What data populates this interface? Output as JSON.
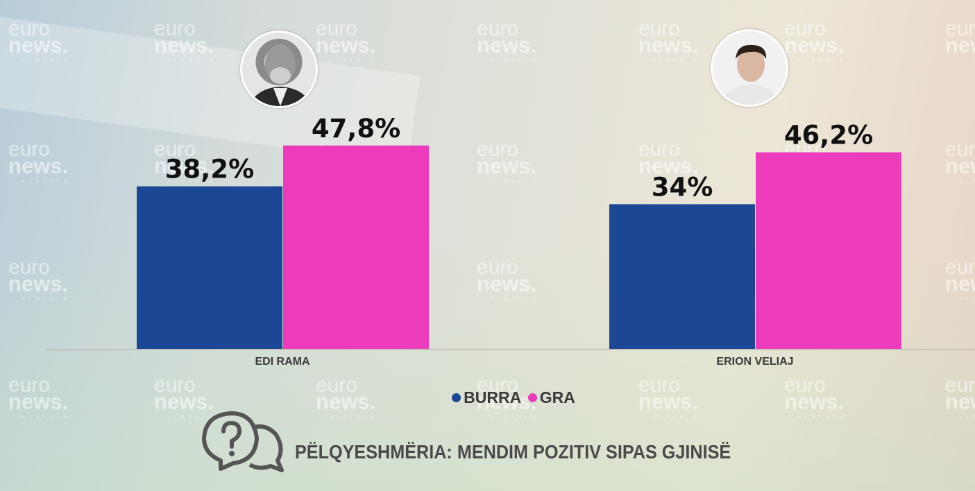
{
  "watermark": {
    "line1": "euro",
    "line2": "news.",
    "line3": "ALBANIA"
  },
  "chart_data": {
    "type": "bar",
    "title": "PËLQYESHMËRIA: MENDIM POZITIV SIPAS GJINISË",
    "categories": [
      "EDI RAMA",
      "ERION VELIAJ"
    ],
    "series": [
      {
        "name": "BURRA",
        "color": "#1c4794",
        "values": [
          38.2,
          34
        ],
        "labels": [
          "38,2%",
          "34%"
        ]
      },
      {
        "name": "GRA",
        "color": "#ec3cbc",
        "values": [
          47.8,
          46.2
        ],
        "labels": [
          "47,8%",
          "46,2%"
        ]
      }
    ],
    "xlabel": "",
    "ylabel": "",
    "ylim": [
      0,
      82
    ],
    "grid": false,
    "legend": "bottom-center"
  }
}
